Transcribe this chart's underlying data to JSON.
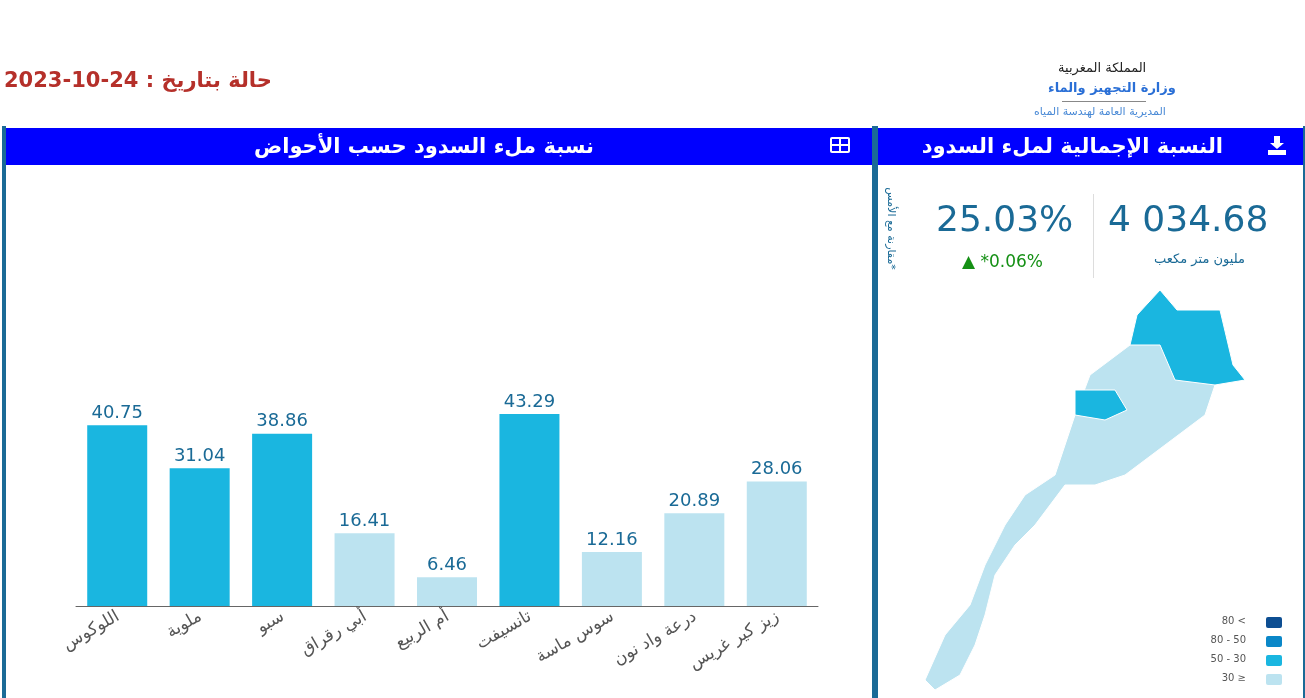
{
  "chart_data": [
    {
      "type": "bar",
      "title": "نسبة ملء السدود حسب الأحواض",
      "categories": [
        "اللوكوس",
        "ملوية",
        "سبو",
        "أبي رقراق",
        "أم الربيع",
        "تانسيفت",
        "سوس ماسة",
        "درعة واد نون",
        "زيز كير غريس"
      ],
      "values": [
        40.75,
        31.04,
        38.86,
        16.41,
        6.46,
        43.29,
        12.16,
        20.89,
        28.06
      ],
      "colors": [
        "#1ab6e0",
        "#1ab6e0",
        "#1ab6e0",
        "#bce3f0",
        "#bce3f0",
        "#1ab6e0",
        "#bce3f0",
        "#bce3f0",
        "#bce3f0"
      ],
      "data_labels": true,
      "annotations": [
        "حالة بتاريخ : 24-10-2023"
      ]
    },
    {
      "type": "other",
      "title": "النسبة الإجمالية لملء السدود",
      "annotations": [
        "المملكة المغربية",
        "وزارة التجهيز والماء",
        "المديرية العامة لهندسة المياه",
        "4 034.68",
        "مليون متر مكعب",
        "25.03%",
        "▲ *0.06%",
        "*مقارنة مع الأمس"
      ],
      "categories": [
        "80 <",
        "80 - 50",
        "50 - 30",
        "30 ≥"
      ],
      "colors": [
        "#0d4e92",
        "#0a87c8",
        "#1ab6e0",
        "#bce3f0"
      ]
    }
  ]
}
